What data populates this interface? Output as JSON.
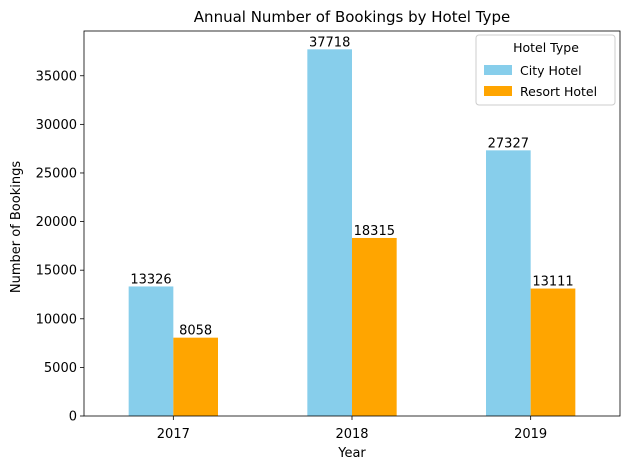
{
  "chart_data": {
    "type": "bar",
    "title": "Annual Number of Bookings by Hotel Type",
    "xlabel": "Year",
    "ylabel": "Number of Bookings",
    "categories": [
      "2017",
      "2018",
      "2019"
    ],
    "series": [
      {
        "name": "City Hotel",
        "values": [
          13326,
          37718,
          27327
        ],
        "color": "#87CEEB"
      },
      {
        "name": "Resort Hotel",
        "values": [
          8058,
          18315,
          13111
        ],
        "color": "#FFA500"
      }
    ],
    "ylim": [
      0,
      39604
    ],
    "yticks": [
      0,
      5000,
      10000,
      15000,
      20000,
      25000,
      30000,
      35000
    ],
    "legend": {
      "title": "Hotel Type",
      "position": "top-right"
    },
    "grid": false,
    "data_labels": true
  }
}
